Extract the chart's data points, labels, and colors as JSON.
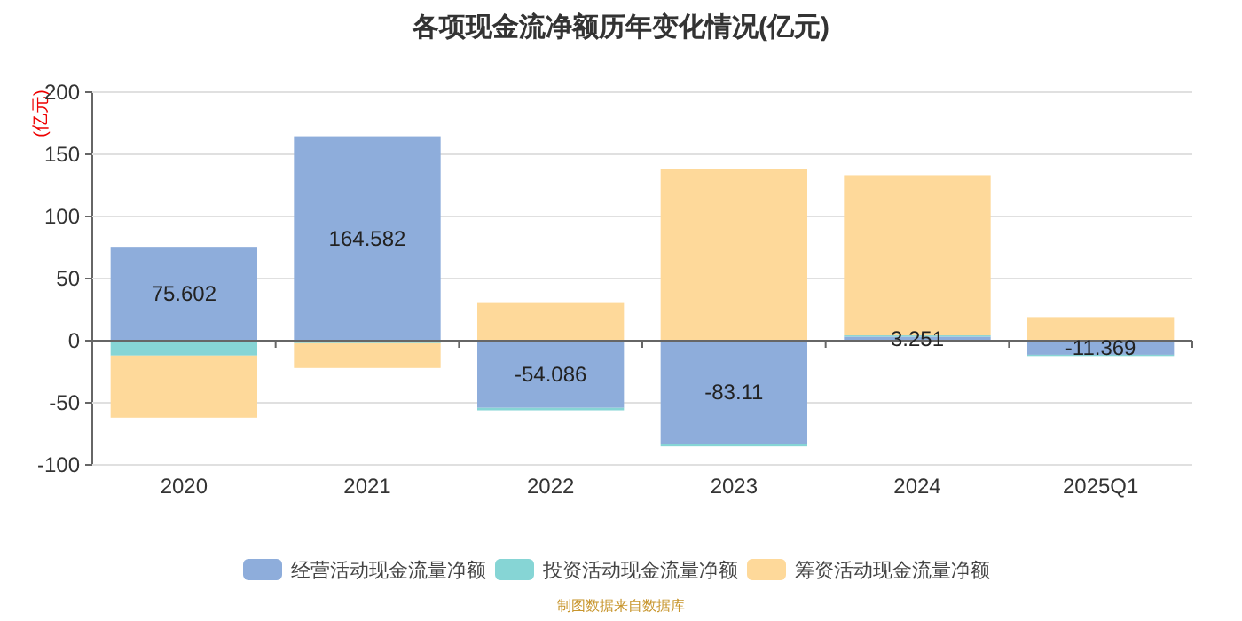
{
  "chart_data": {
    "type": "bar",
    "title": "各项现金流净额历年变化情况(亿元)",
    "ylabel": "(亿元)",
    "categories": [
      "2020",
      "2021",
      "2022",
      "2023",
      "2024",
      "2025Q1"
    ],
    "stacked": true,
    "ylim": [
      -100,
      200
    ],
    "yticks": [
      -100,
      -50,
      0,
      50,
      100,
      150,
      200
    ],
    "grid": "y",
    "legend": "bottom",
    "series": [
      {
        "name": "经营活动现金流量净额",
        "color": "#8eaddb",
        "values": [
          75.602,
          164.582,
          -54.086,
          -83.11,
          3.251,
          -11.369
        ],
        "value_labels": [
          "75.602",
          "164.582",
          "-54.086",
          "-83.11",
          "3.251",
          "-11.369"
        ]
      },
      {
        "name": "投资活动现金流量净额",
        "color": "#86d5d5",
        "values": [
          -12,
          -2,
          -2,
          -2,
          1,
          -1
        ]
      },
      {
        "name": "筹资活动现金流量净额",
        "color": "#fed99a",
        "values": [
          -50,
          -20,
          31,
          138,
          129,
          19
        ]
      }
    ],
    "annotations": [
      "制图数据来自数据库"
    ]
  }
}
